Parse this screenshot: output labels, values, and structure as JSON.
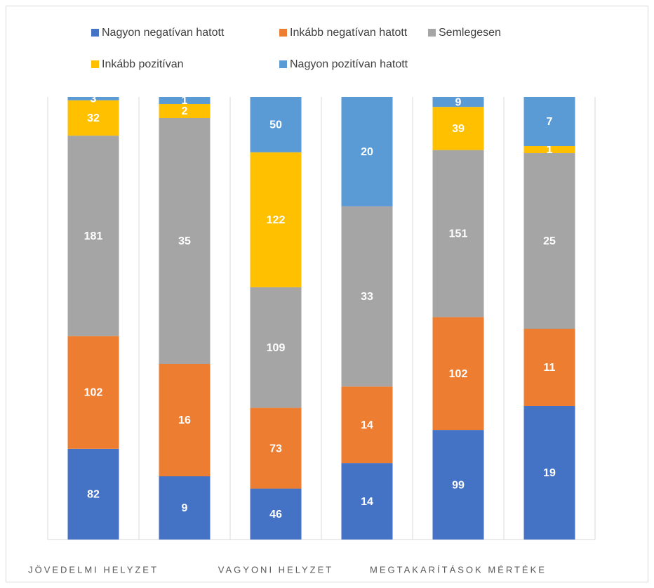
{
  "chart_data": {
    "type": "stacked_bar_percent",
    "categories": [
      "JÖVEDELMI HELYZET",
      null,
      "VAGYONI HELYZET",
      null,
      "MEGTAKARÍTÁSOK MÉRTÉKE",
      null
    ],
    "series": [
      {
        "name": "Nagyon negatívan hatott",
        "color": "#4472c4",
        "values": [
          82,
          9,
          46,
          14,
          99,
          19
        ]
      },
      {
        "name": "Inkább negatívan hatott",
        "color": "#ed7d31",
        "values": [
          102,
          16,
          73,
          14,
          102,
          11
        ]
      },
      {
        "name": "Semlegesen",
        "color": "#a5a5a5",
        "values": [
          181,
          35,
          109,
          33,
          151,
          25
        ]
      },
      {
        "name": "Inkább pozitívan",
        "color": "#ffc000",
        "values": [
          32,
          2,
          122,
          null,
          39,
          1
        ]
      },
      {
        "name": "Nagyon pozitívan hatott",
        "color": "#5b9bd5",
        "values": [
          3,
          1,
          50,
          20,
          9,
          7
        ]
      }
    ],
    "legend": "top",
    "grid": true
  }
}
